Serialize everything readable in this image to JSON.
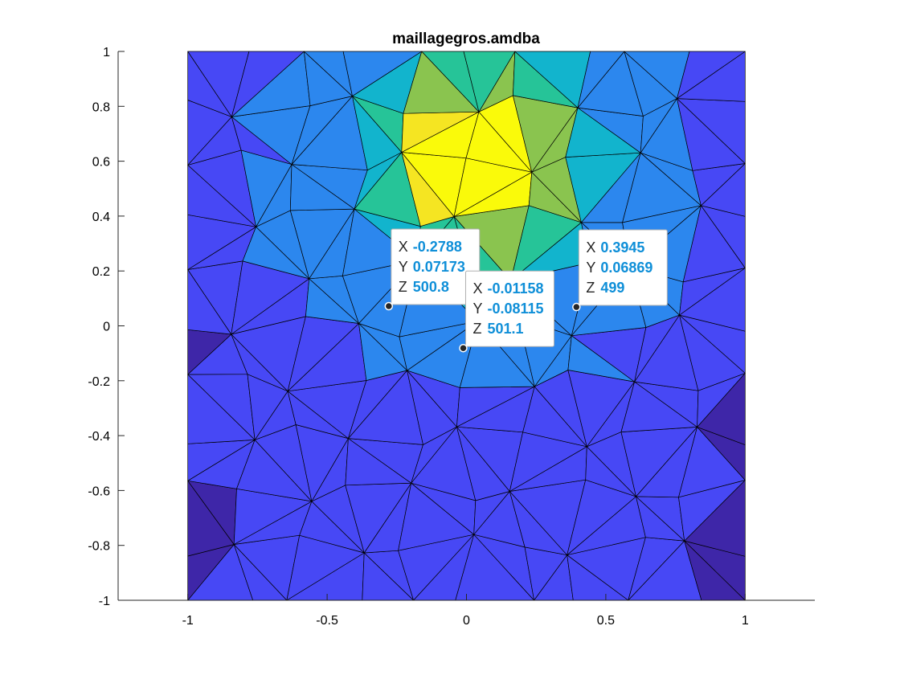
{
  "chart_data": {
    "type": "heatmap",
    "title": "maillagegros.amdba",
    "xlabel": "",
    "ylabel": "",
    "xlim": [
      -1.25,
      1.25
    ],
    "ylim": [
      -1,
      1
    ],
    "x_ticks": [
      -1,
      -0.5,
      0,
      0.5,
      1
    ],
    "x_tick_labels": [
      "-1",
      "-0.5",
      "0",
      "0.5",
      "1"
    ],
    "y_ticks": [
      -1,
      -0.8,
      -0.6,
      -0.4,
      -0.2,
      0,
      0.2,
      0.4,
      0.6,
      0.8,
      1
    ],
    "y_tick_labels": [
      "-1",
      "-0.8",
      "-0.6",
      "-0.4",
      "-0.2",
      "0",
      "0.2",
      "0.4",
      "0.6",
      "0.8",
      "1"
    ],
    "mesh_domain": {
      "x": [
        -1,
        1
      ],
      "y": [
        -1,
        1
      ]
    },
    "mesh_grid": {
      "cols": 10,
      "rows": 10
    },
    "colormap": [
      "#3e26a8",
      "#4748f5",
      "#2c87ee",
      "#12b4cd",
      "#26c498",
      "#8ac44f",
      "#f5e522",
      "#fafa0a"
    ],
    "hotspot": {
      "x": 0.05,
      "y": 0.6
    },
    "datatips": [
      {
        "x_label": "X",
        "x_value": "-0.2788",
        "y_label": "Y",
        "y_value": "0.07173",
        "z_label": "Z",
        "z_value": "500.8",
        "x": -0.2788,
        "y": 0.07173
      },
      {
        "x_label": "X",
        "x_value": "-0.01158",
        "y_label": "Y",
        "y_value": "-0.08115",
        "z_label": "Z",
        "z_value": "501.1",
        "x": -0.01158,
        "y": -0.08115
      },
      {
        "x_label": "X",
        "x_value": "0.3945",
        "y_label": "Y",
        "y_value": "0.06869",
        "z_label": "Z",
        "z_value": "499",
        "x": 0.3945,
        "y": 0.06869
      }
    ]
  }
}
